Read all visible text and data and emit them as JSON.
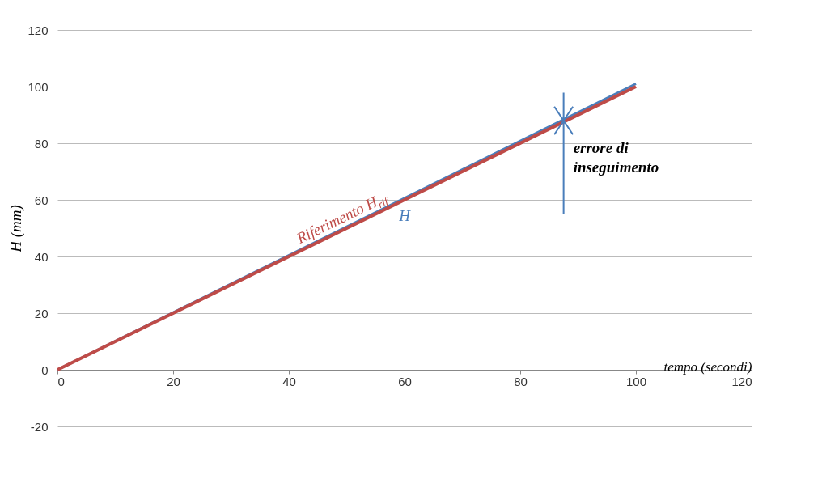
{
  "chart_data": {
    "type": "line",
    "ylabel": "H (mm)",
    "xlabel": "tempo (secondi)",
    "x": [
      0,
      100
    ],
    "series": [
      {
        "name": "H",
        "color": "#4a7ebb",
        "values": [
          0,
          101
        ]
      },
      {
        "name": "Riferimento H$_{rif}$",
        "color": "#be4b48",
        "values": [
          0,
          100
        ]
      }
    ],
    "xlim": [
      0,
      120
    ],
    "xticks": [
      0,
      20,
      40,
      60,
      80,
      100,
      120
    ],
    "ylim": [
      -20,
      120
    ],
    "yticks": [
      -20,
      0,
      20,
      40,
      60,
      80,
      100,
      120
    ],
    "grid": "y",
    "marker": "none",
    "line_style": "solid",
    "annotations": [
      {
        "text": "errore di inseguimento",
        "x": 87.5,
        "y": 88
      }
    ]
  }
}
